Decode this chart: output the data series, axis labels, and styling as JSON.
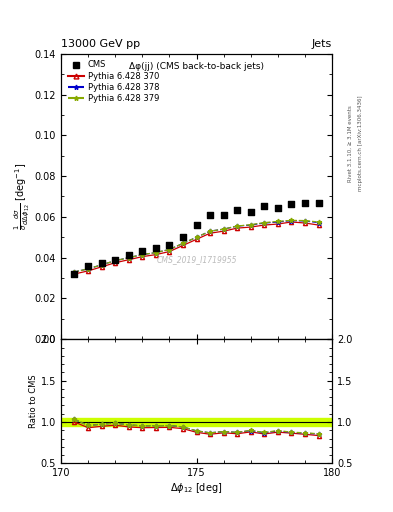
{
  "title_top": "13000 GeV pp",
  "title_right": "Jets",
  "plot_title": "Δφ(jj) (CMS back-to-back jets)",
  "watermark": "CMS_2019_I1719955",
  "right_label1": "Rivet 3.1.10, ≥ 3.1M events",
  "right_label2": "mcplots.cern.ch [arXiv:1306.3436]",
  "ylabel_main": "$\\frac{1}{\\sigma}\\frac{d\\sigma}{d\\Delta\\phi_{12}}$ [deg$^{-1}$]",
  "ylabel_ratio": "Ratio to CMS",
  "xlabel": "$\\Delta\\phi_{12}$ [deg]",
  "xlim": [
    170,
    180
  ],
  "ylim_main": [
    0,
    0.14
  ],
  "ylim_ratio": [
    0.5,
    2.0
  ],
  "cms_x": [
    170.5,
    171.0,
    171.5,
    172.0,
    172.5,
    173.0,
    173.5,
    174.0,
    174.5,
    175.0,
    175.5,
    176.0,
    176.5,
    177.0,
    177.5,
    178.0,
    178.5,
    179.0,
    179.5
  ],
  "cms_y": [
    0.032,
    0.036,
    0.0375,
    0.039,
    0.0415,
    0.0435,
    0.0445,
    0.046,
    0.05,
    0.056,
    0.061,
    0.061,
    0.0635,
    0.0625,
    0.0655,
    0.0645,
    0.0665,
    0.067,
    0.067
  ],
  "p370_x": [
    170.5,
    171.0,
    171.5,
    172.0,
    172.5,
    173.0,
    173.5,
    174.0,
    174.5,
    175.0,
    175.5,
    176.0,
    176.5,
    177.0,
    177.5,
    178.0,
    178.5,
    179.0,
    179.5
  ],
  "p370_y": [
    0.032,
    0.0335,
    0.0355,
    0.0375,
    0.039,
    0.0405,
    0.0415,
    0.043,
    0.046,
    0.049,
    0.052,
    0.053,
    0.0545,
    0.055,
    0.056,
    0.0565,
    0.0575,
    0.057,
    0.056
  ],
  "p378_x": [
    170.5,
    171.0,
    171.5,
    172.0,
    172.5,
    173.0,
    173.5,
    174.0,
    174.5,
    175.0,
    175.5,
    176.0,
    176.5,
    177.0,
    177.5,
    178.0,
    178.5,
    179.0,
    179.5
  ],
  "p378_y": [
    0.033,
    0.0345,
    0.0365,
    0.0385,
    0.04,
    0.0415,
    0.0425,
    0.044,
    0.047,
    0.05,
    0.053,
    0.054,
    0.0555,
    0.056,
    0.057,
    0.0575,
    0.0582,
    0.058,
    0.0572
  ],
  "p379_x": [
    170.5,
    171.0,
    171.5,
    172.0,
    172.5,
    173.0,
    173.5,
    174.0,
    174.5,
    175.0,
    175.5,
    176.0,
    176.5,
    177.0,
    177.5,
    178.0,
    178.5,
    179.0,
    179.5
  ],
  "p379_y": [
    0.033,
    0.0345,
    0.0365,
    0.0385,
    0.04,
    0.0415,
    0.0425,
    0.044,
    0.047,
    0.05,
    0.053,
    0.054,
    0.0555,
    0.0562,
    0.0572,
    0.0578,
    0.0583,
    0.0582,
    0.0575
  ],
  "ratio_p370": [
    1.0,
    0.931,
    0.947,
    0.962,
    0.94,
    0.931,
    0.933,
    0.935,
    0.92,
    0.875,
    0.852,
    0.869,
    0.858,
    0.88,
    0.855,
    0.877,
    0.865,
    0.851,
    0.836
  ],
  "ratio_p378": [
    1.031,
    0.958,
    0.973,
    0.987,
    0.964,
    0.954,
    0.955,
    0.957,
    0.94,
    0.893,
    0.869,
    0.885,
    0.874,
    0.896,
    0.87,
    0.892,
    0.875,
    0.866,
    0.854
  ],
  "ratio_p379": [
    1.031,
    0.958,
    0.973,
    0.987,
    0.964,
    0.954,
    0.955,
    0.957,
    0.94,
    0.893,
    0.869,
    0.885,
    0.874,
    0.899,
    0.873,
    0.897,
    0.877,
    0.869,
    0.858
  ],
  "color_p370": "#cc0000",
  "color_p378": "#0000cc",
  "color_p379": "#88aa00",
  "band_color": "#ccff00",
  "band_lo": 0.95,
  "band_hi": 1.05
}
